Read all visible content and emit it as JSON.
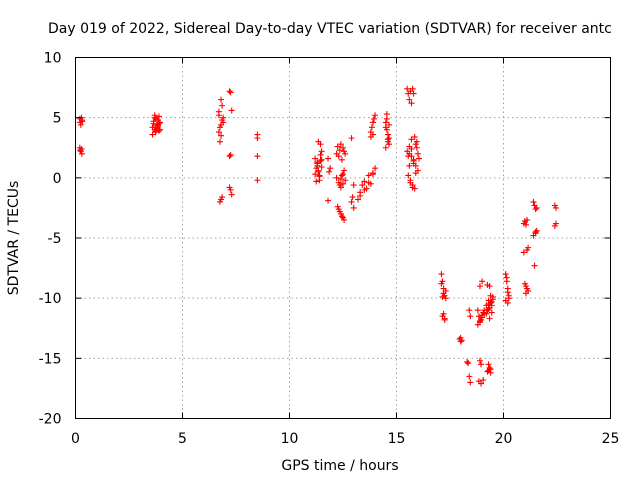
{
  "chart_data": {
    "type": "scatter",
    "title": "Day 019 of 2022, Sidereal Day-to-day VTEC variation (SDTVAR) for receiver antc",
    "xlabel": "GPS time / hours",
    "ylabel": "SDTVAR / TECUs",
    "xlim": [
      0,
      25
    ],
    "ylim": [
      -20,
      10
    ],
    "xticks": [
      0,
      5,
      10,
      15,
      20,
      25
    ],
    "yticks": [
      -20,
      -15,
      -10,
      -5,
      0,
      5,
      10
    ],
    "grid": true,
    "marker": "+",
    "color": "#ff0000",
    "series": [
      {
        "name": "SDTVAR",
        "x": [
          0.2,
          0.22,
          0.25,
          0.28,
          0.3,
          0.32,
          0.2,
          0.25,
          0.3,
          0.22,
          0.28,
          3.6,
          3.65,
          3.7,
          3.75,
          3.8,
          3.85,
          3.9,
          3.95,
          3.6,
          3.7,
          3.8,
          3.9,
          3.65,
          3.75,
          3.85,
          3.95,
          3.7,
          3.8,
          3.9,
          3.75,
          3.85,
          6.7,
          6.75,
          6.8,
          6.85,
          6.9,
          6.7,
          6.8,
          6.9,
          6.75,
          6.85,
          6.8,
          6.75,
          6.85,
          6.7,
          6.8,
          7.2,
          7.25,
          7.3,
          7.2,
          7.25,
          7.2,
          7.3,
          7.25,
          8.5,
          8.5,
          8.5,
          8.5,
          11.2,
          11.25,
          11.3,
          11.35,
          11.4,
          11.45,
          11.5,
          11.2,
          11.3,
          11.4,
          11.5,
          11.25,
          11.35,
          11.45,
          11.3,
          11.4,
          11.35,
          11.45,
          11.5,
          11.8,
          11.85,
          11.9,
          11.8,
          12.2,
          12.25,
          12.3,
          12.35,
          12.4,
          12.45,
          12.5,
          12.55,
          12.6,
          12.2,
          12.3,
          12.4,
          12.5,
          12.6,
          12.25,
          12.35,
          12.45,
          12.55,
          12.3,
          12.4,
          12.5,
          12.35,
          12.45,
          12.4,
          12.5,
          12.55,
          12.9,
          13.0,
          12.9,
          13.0,
          12.95,
          13.2,
          13.3,
          13.4,
          13.5,
          13.6,
          13.7,
          13.8,
          13.9,
          14.0,
          13.3,
          13.5,
          13.7,
          13.9,
          13.8,
          13.85,
          13.9,
          13.95,
          14.0,
          13.8,
          13.9,
          14.5,
          14.55,
          14.6,
          14.65,
          14.5,
          14.6,
          14.55,
          14.65,
          14.5,
          14.6,
          14.55,
          14.65,
          15.5,
          15.55,
          15.6,
          15.65,
          15.7,
          15.75,
          15.8,
          15.85,
          15.9,
          15.95,
          16.0,
          16.05,
          15.5,
          15.6,
          15.7,
          15.8,
          15.9,
          16.0,
          15.55,
          15.65,
          15.75,
          15.85,
          15.95,
          15.6,
          15.7,
          15.8,
          15.9,
          15.65,
          15.75,
          15.55,
          15.6,
          15.7,
          15.8,
          17.1,
          17.15,
          17.2,
          17.25,
          17.3,
          17.1,
          17.2,
          17.3,
          17.15,
          17.25,
          17.2,
          17.25,
          17.15,
          17.95,
          18.0,
          18.05,
          18.0,
          18.3,
          18.4,
          18.45,
          18.35,
          18.4,
          18.45,
          18.8,
          18.85,
          18.9,
          18.95,
          19.0,
          19.05,
          19.1,
          18.8,
          18.9,
          19.0,
          19.1,
          18.85,
          18.95,
          19.05,
          18.9,
          19.0,
          18.9,
          18.95,
          19.2,
          19.25,
          19.3,
          19.35,
          19.4,
          19.45,
          19.5,
          19.2,
          19.3,
          19.4,
          19.5,
          19.25,
          19.35,
          19.45,
          19.3,
          19.4,
          19.35,
          19.3,
          19.4,
          19.25,
          19.35,
          19.45,
          19.3,
          19.4,
          20.1,
          20.15,
          20.2,
          20.25,
          20.1,
          20.2,
          20.15,
          20.25,
          20.2,
          20.95,
          21.0,
          21.05,
          21.1,
          21.15,
          20.95,
          21.05,
          21.1,
          21.0,
          21.15,
          21.05,
          21.1,
          21.4,
          21.45,
          21.5,
          21.55,
          21.4,
          21.5,
          21.45,
          21.55,
          21.5,
          22.4,
          22.45,
          22.4,
          22.45
        ],
        "y": [
          4.9,
          4.6,
          4.4,
          5.0,
          4.8,
          4.7,
          2.5,
          2.2,
          2.0,
          2.3,
          2.4,
          4.2,
          4.5,
          5.0,
          3.8,
          4.4,
          4.8,
          5.1,
          4.0,
          3.6,
          4.0,
          4.2,
          3.9,
          4.7,
          4.9,
          4.3,
          4.6,
          5.2,
          4.1,
          4.5,
          3.9,
          4.4,
          5.5,
          4.2,
          6.5,
          4.8,
          5.0,
          3.8,
          3.5,
          4.6,
          3.0,
          6.0,
          -1.8,
          -2.0,
          -1.6,
          5.2,
          4.4,
          7.2,
          7.1,
          5.6,
          1.8,
          1.9,
          -0.8,
          -1.4,
          -1.0,
          3.6,
          3.3,
          1.8,
          -0.2,
          1.6,
          0.8,
          1.2,
          0.5,
          -0.2,
          1.9,
          0.9,
          0.3,
          1.3,
          0.1,
          2.2,
          -0.3,
          0.6,
          1.4,
          1.0,
          0.2,
          3.0,
          2.8,
          1.5,
          1.6,
          0.5,
          0.8,
          -1.9,
          2.0,
          2.6,
          1.8,
          2.3,
          2.8,
          1.5,
          2.5,
          2.2,
          2.0,
          0.0,
          -0.4,
          -0.8,
          0.3,
          -0.2,
          -2.4,
          -2.8,
          -3.2,
          -3.5,
          -2.6,
          -3.0,
          -3.3,
          -0.6,
          0.2,
          -0.1,
          -0.5,
          0.6,
          3.3,
          -0.6,
          -2.0,
          -2.5,
          -1.6,
          -1.8,
          -1.2,
          -0.6,
          -0.3,
          -0.9,
          0.2,
          -0.5,
          0.3,
          0.8,
          -1.5,
          -1.0,
          -0.4,
          0.4,
          3.8,
          4.2,
          4.6,
          4.9,
          5.2,
          3.4,
          3.6,
          4.6,
          4.9,
          3.2,
          2.8,
          4.2,
          3.6,
          5.3,
          4.4,
          2.5,
          3.0,
          4.0,
          3.3,
          7.4,
          7.0,
          6.5,
          7.2,
          6.2,
          7.4,
          7.0,
          3.4,
          2.8,
          2.5,
          2.0,
          1.6,
          2.2,
          2.0,
          1.8,
          1.4,
          1.0,
          0.6,
          0.2,
          -0.2,
          -0.6,
          -0.9,
          3.0,
          2.6,
          3.2,
          1.2,
          0.4,
          -0.4,
          -0.8,
          1.8,
          1.0,
          2.4,
          1.5,
          -8.0,
          -8.6,
          -9.2,
          -9.8,
          -10.0,
          -8.8,
          -9.6,
          -9.4,
          -11.5,
          -11.7,
          -11.3,
          -11.8,
          -9.9,
          -13.4,
          -13.6,
          -13.5,
          -13.3,
          -15.3,
          -16.5,
          -17.0,
          -15.4,
          -11.0,
          -11.5,
          -11.0,
          -11.5,
          -12.0,
          -11.8,
          -11.4,
          -11.2,
          -11.0,
          -12.2,
          -11.9,
          -11.6,
          -11.3,
          -16.9,
          -17.1,
          -16.8,
          -9.0,
          -8.6,
          -15.2,
          -15.5,
          -10.6,
          -11.0,
          -10.2,
          -10.8,
          -10.4,
          -10.6,
          -9.9,
          -11.3,
          -10.5,
          -9.8,
          -10.1,
          -8.9,
          -9.0,
          -10.3,
          -16.0,
          -16.2,
          -15.8,
          -15.5,
          -15.9,
          -16.1,
          -11.7,
          -11.2,
          -10.9,
          -10.4,
          -8.0,
          -8.3,
          -9.5,
          -9.8,
          -10.2,
          -9.2,
          -8.6,
          -10.0,
          -10.4,
          -3.8,
          -3.6,
          -3.9,
          -6.0,
          -5.8,
          -6.2,
          -9.6,
          -9.2,
          -8.8,
          -9.4,
          -9.0,
          -3.5,
          -2.0,
          -2.3,
          -2.6,
          -4.4,
          -4.8,
          -4.6,
          -7.3,
          -2.5,
          -4.5,
          -2.3,
          -2.5,
          -4.0,
          -3.8
        ]
      }
    ]
  }
}
